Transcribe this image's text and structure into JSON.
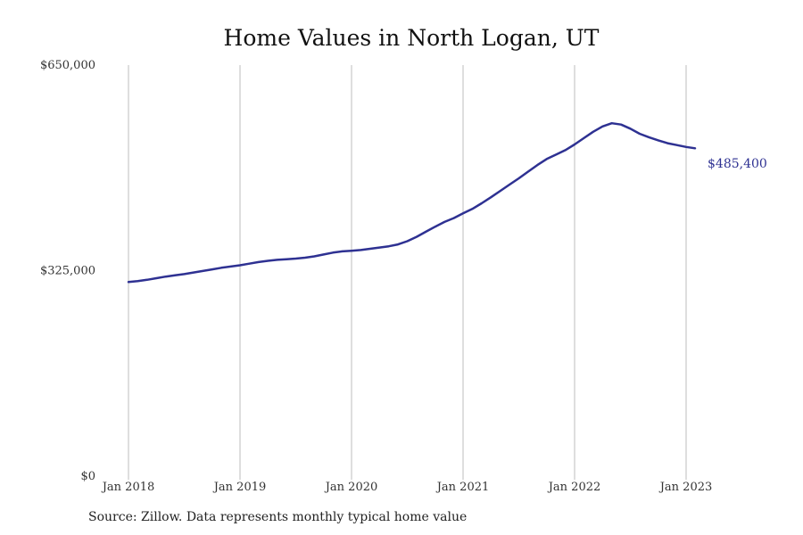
{
  "chart_data": {
    "type": "line",
    "title": "Home Values in North Logan, UT",
    "xlabel": "",
    "ylabel": "",
    "y_ticks": [
      {
        "value": 0,
        "label": "$0"
      },
      {
        "value": 325000,
        "label": "$325,000"
      },
      {
        "value": 650000,
        "label": "$650,000"
      }
    ],
    "x_ticks": [
      {
        "value": "2018-01",
        "label": "Jan 2018"
      },
      {
        "value": "2019-01",
        "label": "Jan 2019"
      },
      {
        "value": "2020-01",
        "label": "Jan 2020"
      },
      {
        "value": "2021-01",
        "label": "Jan 2021"
      },
      {
        "value": "2022-01",
        "label": "Jan 2022"
      },
      {
        "value": "2023-01",
        "label": "Jan 2023"
      }
    ],
    "ylim": [
      0,
      650000
    ],
    "xlim": [
      "2018-01",
      "2023-06"
    ],
    "grid": "vertical",
    "color": "#2e3192",
    "end_label": "$485,400",
    "series": [
      {
        "x": [
          "2018-01",
          "2018-02",
          "2018-03",
          "2018-04",
          "2018-05",
          "2018-06",
          "2018-07",
          "2018-08",
          "2018-09",
          "2018-10",
          "2018-11",
          "2018-12",
          "2019-01",
          "2019-02",
          "2019-03",
          "2019-04",
          "2019-05",
          "2019-06",
          "2019-07",
          "2019-08",
          "2019-09",
          "2019-10",
          "2019-11",
          "2019-12",
          "2020-01",
          "2020-02",
          "2020-03",
          "2020-04",
          "2020-05",
          "2020-06",
          "2020-07",
          "2020-08",
          "2020-09",
          "2020-10",
          "2020-11",
          "2020-12",
          "2021-01",
          "2021-02",
          "2021-03",
          "2021-04",
          "2021-05",
          "2021-06",
          "2021-07",
          "2021-08",
          "2021-09",
          "2021-10",
          "2021-11",
          "2021-12",
          "2022-01",
          "2022-02",
          "2022-03",
          "2022-04",
          "2022-05",
          "2022-06",
          "2022-07",
          "2022-08",
          "2022-09",
          "2022-10",
          "2022-11",
          "2022-12",
          "2023-01",
          "2023-02"
        ],
        "y": [
          307000,
          308500,
          310500,
          313000,
          315500,
          317500,
          319500,
          322000,
          324500,
          327000,
          329500,
          331500,
          333500,
          336000,
          338500,
          340500,
          342000,
          343000,
          344000,
          345500,
          347500,
          350500,
          353500,
          355500,
          356500,
          357500,
          359500,
          361500,
          363500,
          366500,
          371500,
          378500,
          386500,
          394500,
          402000,
          408000,
          415500,
          422500,
          431500,
          441000,
          451000,
          461000,
          471000,
          481500,
          492000,
          501500,
          508500,
          515500,
          524500,
          534500,
          544500,
          553000,
          558000,
          556000,
          549500,
          541500,
          536000,
          531000,
          526500,
          523500,
          520500,
          485400
        ]
      }
    ]
  },
  "source_text": "Source: Zillow. Data represents monthly typical home value"
}
